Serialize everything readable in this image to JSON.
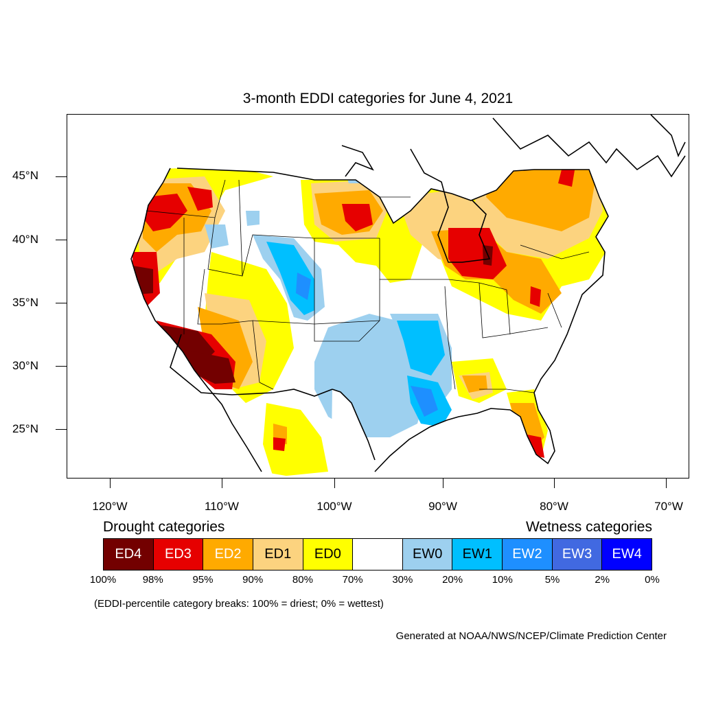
{
  "title": "3-month EDDI categories for June 4, 2021",
  "lat_labels": [
    "45°N",
    "40°N",
    "35°N",
    "30°N",
    "25°N"
  ],
  "lon_labels": [
    "120°W",
    "110°W",
    "100°W",
    "90°W",
    "80°W",
    "70°W"
  ],
  "legend": {
    "drought_heading": "Drought categories",
    "wetness_heading": "Wetness categories",
    "categories": [
      {
        "label": "ED4",
        "color": "#730000",
        "text_color": "#ffffff"
      },
      {
        "label": "ED3",
        "color": "#e60000",
        "text_color": "#ffffff"
      },
      {
        "label": "ED2",
        "color": "#ffaa00",
        "text_color": "#ffffff"
      },
      {
        "label": "ED1",
        "color": "#fcd37f",
        "text_color": "#000000"
      },
      {
        "label": "ED0",
        "color": "#ffff00",
        "text_color": "#000000"
      },
      {
        "label": "",
        "color": "#ffffff",
        "text_color": "#000000"
      },
      {
        "label": "EW0",
        "color": "#9dd0ef",
        "text_color": "#000000"
      },
      {
        "label": "EW1",
        "color": "#00bfff",
        "text_color": "#000000"
      },
      {
        "label": "EW2",
        "color": "#1e8fff",
        "text_color": "#ffffff"
      },
      {
        "label": "EW3",
        "color": "#4169e1",
        "text_color": "#ffffff"
      },
      {
        "label": "EW4",
        "color": "#0000ff",
        "text_color": "#ffffff"
      }
    ],
    "breaks": [
      "100%",
      "98%",
      "95%",
      "90%",
      "80%",
      "70%",
      "30%",
      "20%",
      "10%",
      "5%",
      "2%",
      "0%"
    ]
  },
  "note": "(EDDI-percentile category breaks: 100% = driest; 0% = wettest)",
  "credit": "Generated at NOAA/NWS/NCEP/Climate Prediction Center",
  "colors": {
    "ED4": "#730000",
    "ED3": "#e60000",
    "ED2": "#ffaa00",
    "ED1": "#fcd37f",
    "ED0": "#ffff00",
    "EW0": "#9dd0ef",
    "EW1": "#00bfff",
    "EW2": "#1e8fff",
    "border": "#000000"
  }
}
